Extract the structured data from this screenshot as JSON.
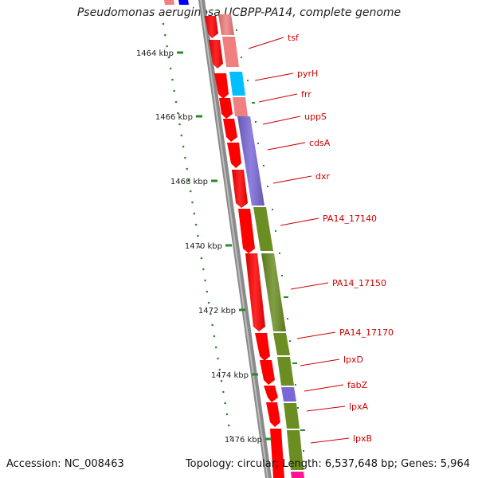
{
  "title": "Pseudomonas aeruginosa UCBPP-PA14, complete genome",
  "footer": {
    "accession": "Accession: NC_008463",
    "summary": "Topology: circular; Length: 6,537,648 bp; Genes: 5,964"
  },
  "scale": {
    "ticks": [
      "1464 kbp",
      "1466 kbp",
      "1468 kbp",
      "1470 kbp",
      "1472 kbp",
      "1474 kbp",
      "1476 kbp"
    ]
  },
  "genes": [
    "tsf",
    "pyrH",
    "frr",
    "uppS",
    "cdsA",
    "dxr",
    "PA14_17140",
    "PA14_17150",
    "PA14_17170",
    "lpxD",
    "fabZ",
    "lpxA",
    "lpxB"
  ],
  "colors": {
    "forward_cds": "#ff0000",
    "cog_j_translation": "#f08080",
    "cog_f_nucleotide": "#00bfff",
    "cog_i_lipid": "#7b68d8",
    "cog_m_envelope": "#6b8e23",
    "label": "#cc0000",
    "tick": "#2a8a2a",
    "backbone": "#8a8a8a"
  }
}
